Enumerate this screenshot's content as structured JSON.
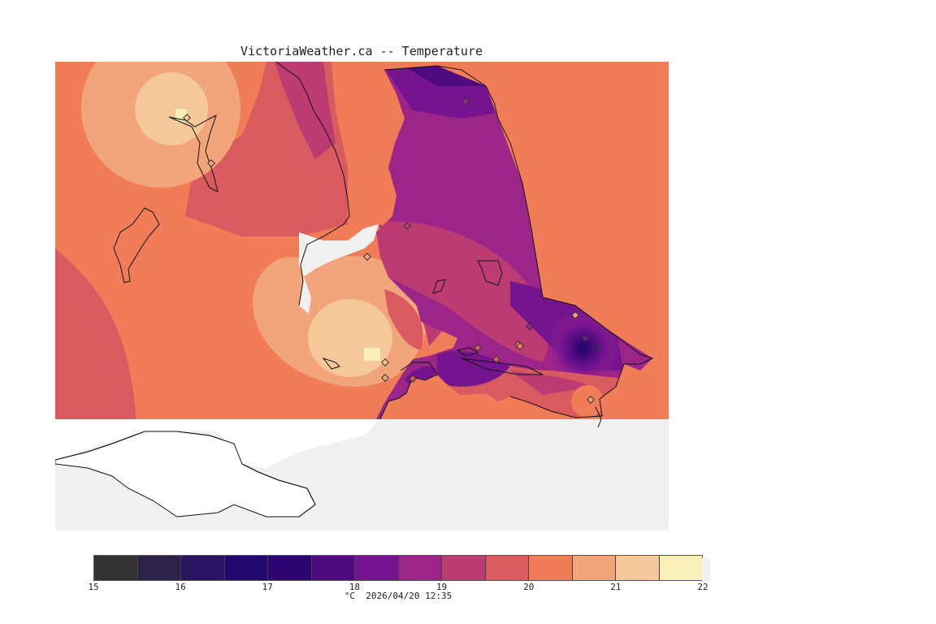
{
  "title": "VictoriaWeather.ca -- Temperature",
  "colors": {
    "background": "#f0f0f0",
    "scale": [
      "#333333",
      "#2c2149",
      "#2b1461",
      "#20086e",
      "#2d0572",
      "#4e0a7f",
      "#761490",
      "#9c2589",
      "#bd3b73",
      "#da5b5f",
      "#f07d58",
      "#f2a47a",
      "#f4c899",
      "#f8efb9"
    ]
  },
  "legend": {
    "unit": "°C",
    "timestamp": "2026/04/20 12:35",
    "ticks": [
      "15",
      "16",
      "17",
      "18",
      "19",
      "20",
      "21",
      "22"
    ],
    "min": 15,
    "max": 22
  },
  "stations": [
    {
      "id": "s1"
    },
    {
      "id": "s2"
    },
    {
      "id": "s3"
    },
    {
      "id": "s4"
    },
    {
      "id": "s5"
    },
    {
      "id": "s6"
    },
    {
      "id": "s7"
    },
    {
      "id": "s8"
    },
    {
      "id": "s9"
    },
    {
      "id": "s10"
    },
    {
      "id": "s11"
    },
    {
      "id": "s12"
    },
    {
      "id": "s13"
    },
    {
      "id": "s14"
    },
    {
      "id": "s15"
    },
    {
      "id": "s16"
    },
    {
      "id": "s17"
    }
  ]
}
